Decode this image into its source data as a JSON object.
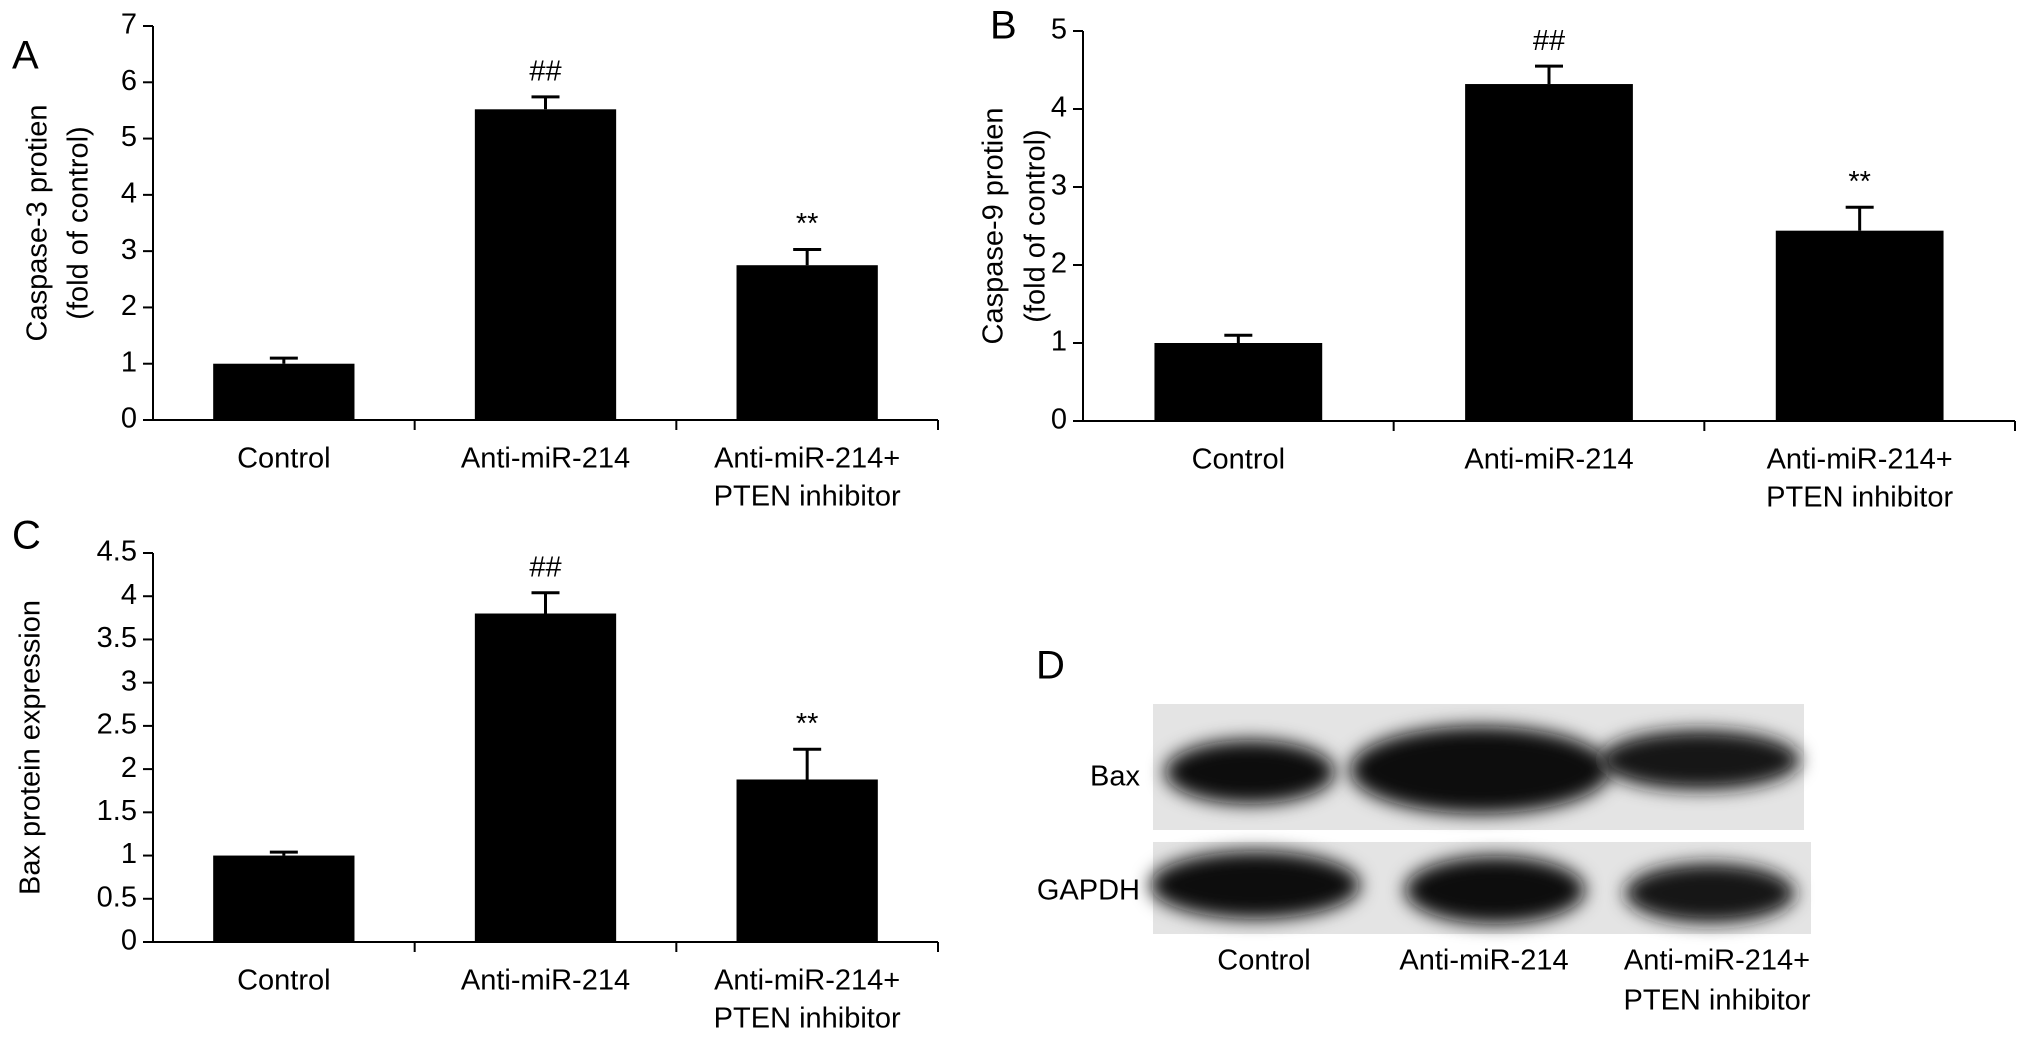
{
  "chart_data": [
    {
      "type": "bar",
      "panel": "A",
      "ylabel": [
        "Caspase-3 protien",
        "(fold of control)"
      ],
      "categories": [
        [
          "Control"
        ],
        [
          "Anti-miR-214"
        ],
        [
          "Anti-miR-214+",
          "PTEN inhibitor"
        ]
      ],
      "values": [
        1,
        5.52,
        2.75
      ],
      "errors": [
        0.1,
        0.22,
        0.28
      ],
      "annotations": [
        null,
        "##",
        "**"
      ],
      "color": "#000000",
      "ylim": [
        0,
        7
      ],
      "yticks": [
        0,
        1,
        2,
        3,
        4,
        5,
        6,
        7
      ]
    },
    {
      "type": "bar",
      "panel": "B",
      "ylabel": [
        "Caspase-9 protien",
        "(fold of control)"
      ],
      "categories": [
        [
          "Control"
        ],
        [
          "Anti-miR-214"
        ],
        [
          "Anti-miR-214+",
          "PTEN inhibitor"
        ]
      ],
      "values": [
        1,
        4.32,
        2.44
      ],
      "errors": [
        0.1,
        0.23,
        0.3
      ],
      "annotations": [
        null,
        "##",
        "**"
      ],
      "color": "#000000",
      "ylim": [
        0,
        5
      ],
      "yticks": [
        0,
        1,
        2,
        3,
        4,
        5
      ]
    },
    {
      "type": "bar",
      "panel": "C",
      "ylabel": [
        "Bax protein expression"
      ],
      "categories": [
        [
          "Control"
        ],
        [
          "Anti-miR-214"
        ],
        [
          "Anti-miR-214+",
          "PTEN inhibitor"
        ]
      ],
      "values": [
        1,
        3.8,
        1.88
      ],
      "errors": [
        0.04,
        0.24,
        0.35
      ],
      "annotations": [
        null,
        "##",
        "**"
      ],
      "color": "#000000",
      "ylim": [
        0,
        4.5
      ],
      "yticks": [
        0,
        0.5,
        1,
        1.5,
        2,
        2.5,
        3,
        3.5,
        4,
        4.5
      ]
    }
  ],
  "blot": {
    "panel": "D",
    "rows": [
      "Bax",
      "GAPDH"
    ],
    "lanes": [
      [
        "Control"
      ],
      [
        "Anti-miR-214"
      ],
      [
        "Anti-miR-214+",
        "PTEN inhibitor"
      ]
    ]
  }
}
